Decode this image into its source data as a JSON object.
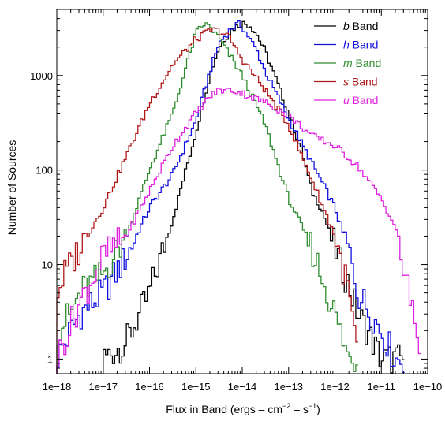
{
  "chart_data": {
    "type": "line",
    "drawstyle": "steps",
    "xlabel": "Flux in Band (ergs – cm",
    "xlabel_exp1": "−2",
    "xlabel_mid": " – s",
    "xlabel_exp2": "−1",
    "xlabel_end": ")",
    "ylabel": "Number of Sources",
    "x_scale": "log",
    "y_scale": "log",
    "xlim": [
      1e-18,
      1e-10
    ],
    "ylim": [
      0.7,
      5000
    ],
    "x_ticks": [
      {
        "value": 1e-18,
        "label": "1e−18"
      },
      {
        "value": 1e-17,
        "label": "1e−17"
      },
      {
        "value": 1e-16,
        "label": "1e−16"
      },
      {
        "value": 1e-15,
        "label": "1e−15"
      },
      {
        "value": 1e-14,
        "label": "1e−14"
      },
      {
        "value": 1e-13,
        "label": "1e−13"
      },
      {
        "value": 1e-12,
        "label": "1e−12"
      },
      {
        "value": 1e-11,
        "label": "1e−11"
      },
      {
        "value": 1e-10,
        "label": "1e−10"
      }
    ],
    "y_ticks": [
      {
        "value": 1,
        "label": "1"
      },
      {
        "value": 10,
        "label": "10"
      },
      {
        "value": 100,
        "label": "100"
      },
      {
        "value": 1000,
        "label": "1000"
      }
    ],
    "grid": false,
    "legend_position": "top-right",
    "series": [
      {
        "name": "Band",
        "italic_prefix": "b",
        "color": "#000000",
        "x": [
          1e-17,
          3.16e-17,
          1e-16,
          3.16e-16,
          1e-15,
          2e-15,
          3.16e-15,
          6e-15,
          1e-14,
          1.5e-14,
          2e-14,
          3.16e-14,
          5e-14,
          1e-13,
          2e-13,
          3.16e-13,
          5e-13,
          1e-12,
          2e-12,
          3.16e-12,
          5e-12,
          1e-11,
          2e-11,
          3e-11
        ],
        "values": [
          1,
          1.5,
          5,
          30,
          250,
          1000,
          2000,
          3100,
          3600,
          3400,
          2800,
          1800,
          1000,
          400,
          150,
          60,
          40,
          15,
          6,
          3,
          2,
          1,
          1,
          1
        ]
      },
      {
        "name": "Band",
        "italic_prefix": "h",
        "color": "#1010e0",
        "x": [
          1e-18,
          2e-18,
          3.16e-18,
          1e-17,
          3.16e-17,
          1e-16,
          3.16e-16,
          1e-15,
          2e-15,
          3.16e-15,
          6e-15,
          8e-15,
          1e-14,
          2e-14,
          3.16e-14,
          1e-13,
          3.16e-13,
          1e-12,
          2e-12,
          3.16e-12,
          1e-11,
          2e-11,
          3e-11
        ],
        "values": [
          1,
          2,
          3,
          5,
          12,
          40,
          90,
          330,
          1100,
          2200,
          3200,
          3500,
          3300,
          1900,
          1100,
          350,
          120,
          40,
          14,
          5,
          2,
          1,
          1
        ]
      },
      {
        "name": "Band",
        "italic_prefix": "m",
        "color": "#2e8b2e",
        "x": [
          1e-18,
          2e-18,
          3.16e-18,
          1e-17,
          3.16e-17,
          1e-16,
          3.16e-16,
          1e-15,
          1.5e-15,
          2e-15,
          3.16e-15,
          1e-14,
          3.16e-14,
          1e-13,
          3.16e-13,
          1e-12,
          2e-12,
          3e-12
        ],
        "values": [
          2,
          3,
          5,
          8,
          20,
          100,
          400,
          2800,
          3500,
          3300,
          2500,
          1000,
          300,
          50,
          15,
          3,
          1,
          1
        ]
      },
      {
        "name": "Band",
        "italic_prefix": "s",
        "color": "#b01818",
        "x": [
          1e-18,
          1.5e-18,
          2e-18,
          3.16e-18,
          1e-17,
          3.16e-17,
          1e-16,
          3.16e-16,
          1e-15,
          2e-15,
          3.16e-15,
          5e-15,
          1e-14,
          3.16e-14,
          1e-13,
          3.16e-13,
          1e-12,
          2e-12,
          3.16e-12
        ],
        "values": [
          5,
          8,
          10,
          15,
          40,
          140,
          500,
          1300,
          2400,
          3000,
          3000,
          2600,
          1500,
          700,
          300,
          80,
          20,
          5,
          1
        ]
      },
      {
        "name": "Band",
        "italic_prefix": "u",
        "color": "#e020e0",
        "x": [
          1e-18,
          3.16e-18,
          5e-18,
          1e-17,
          3.16e-17,
          1e-16,
          3.16e-16,
          1e-15,
          2e-15,
          3.16e-15,
          6e-15,
          1e-14,
          3.16e-14,
          1e-13,
          3.16e-13,
          1e-12,
          3.16e-12,
          1e-11,
          2e-11,
          3.16e-11,
          5e-11,
          7e-11
        ],
        "values": [
          1,
          4,
          6,
          12,
          20,
          60,
          180,
          400,
          600,
          700,
          700,
          650,
          520,
          380,
          230,
          180,
          110,
          50,
          25,
          8,
          3,
          1
        ]
      }
    ]
  }
}
